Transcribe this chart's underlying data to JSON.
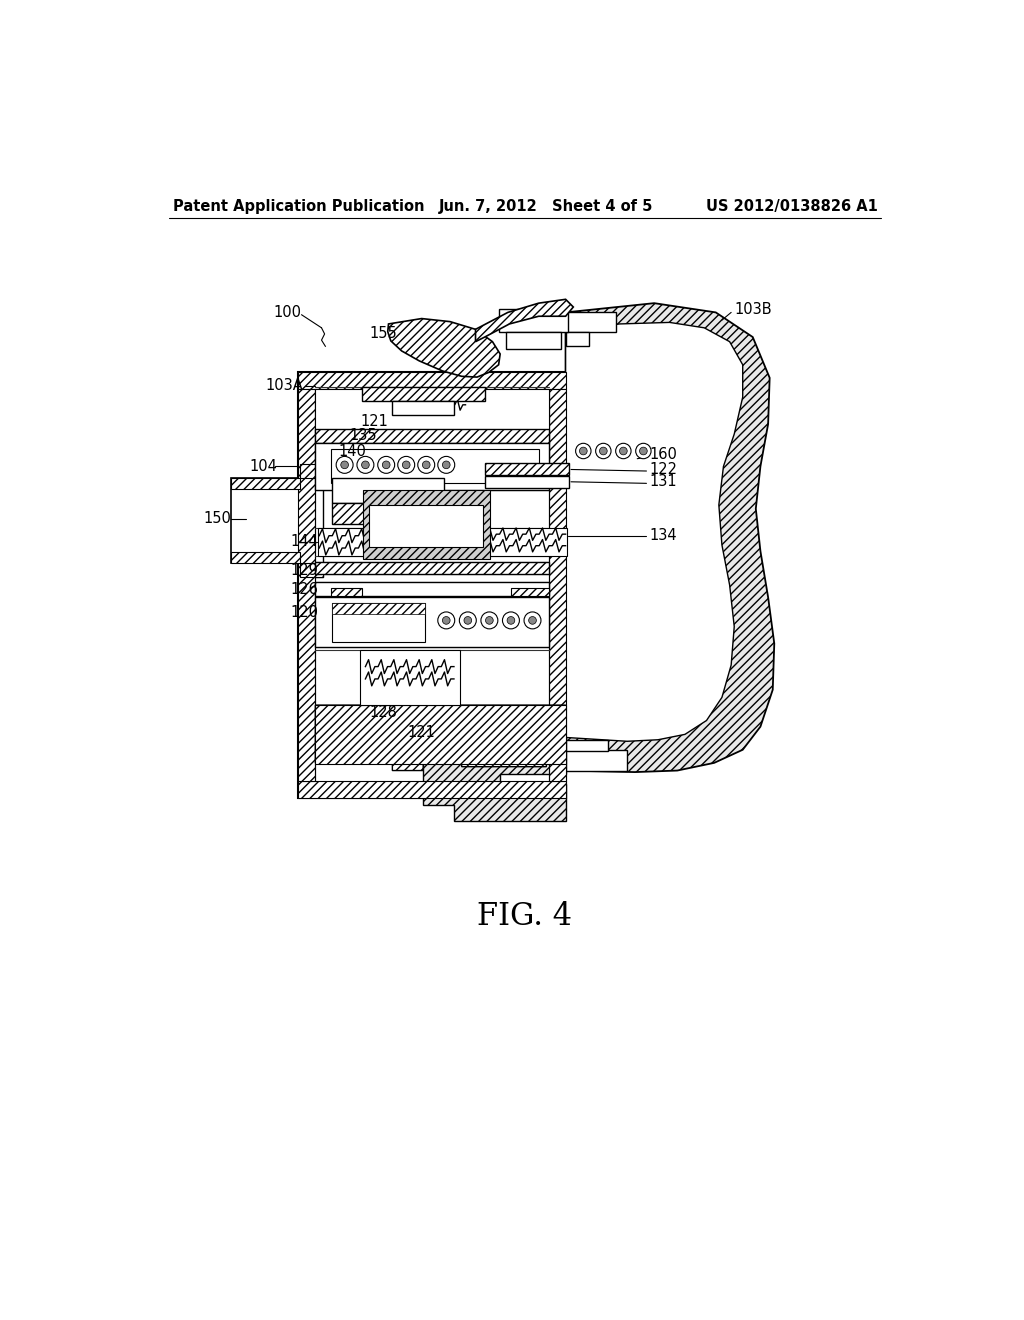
{
  "background_color": "#ffffff",
  "header_left": "Patent Application Publication",
  "header_center": "Jun. 7, 2012   Sheet 4 of 5",
  "header_right": "US 2012/0138826 A1",
  "figure_label": "FIG. 4",
  "header_fontsize": 10.5,
  "label_fontsize": 10.5,
  "fig4_fontsize": 22
}
